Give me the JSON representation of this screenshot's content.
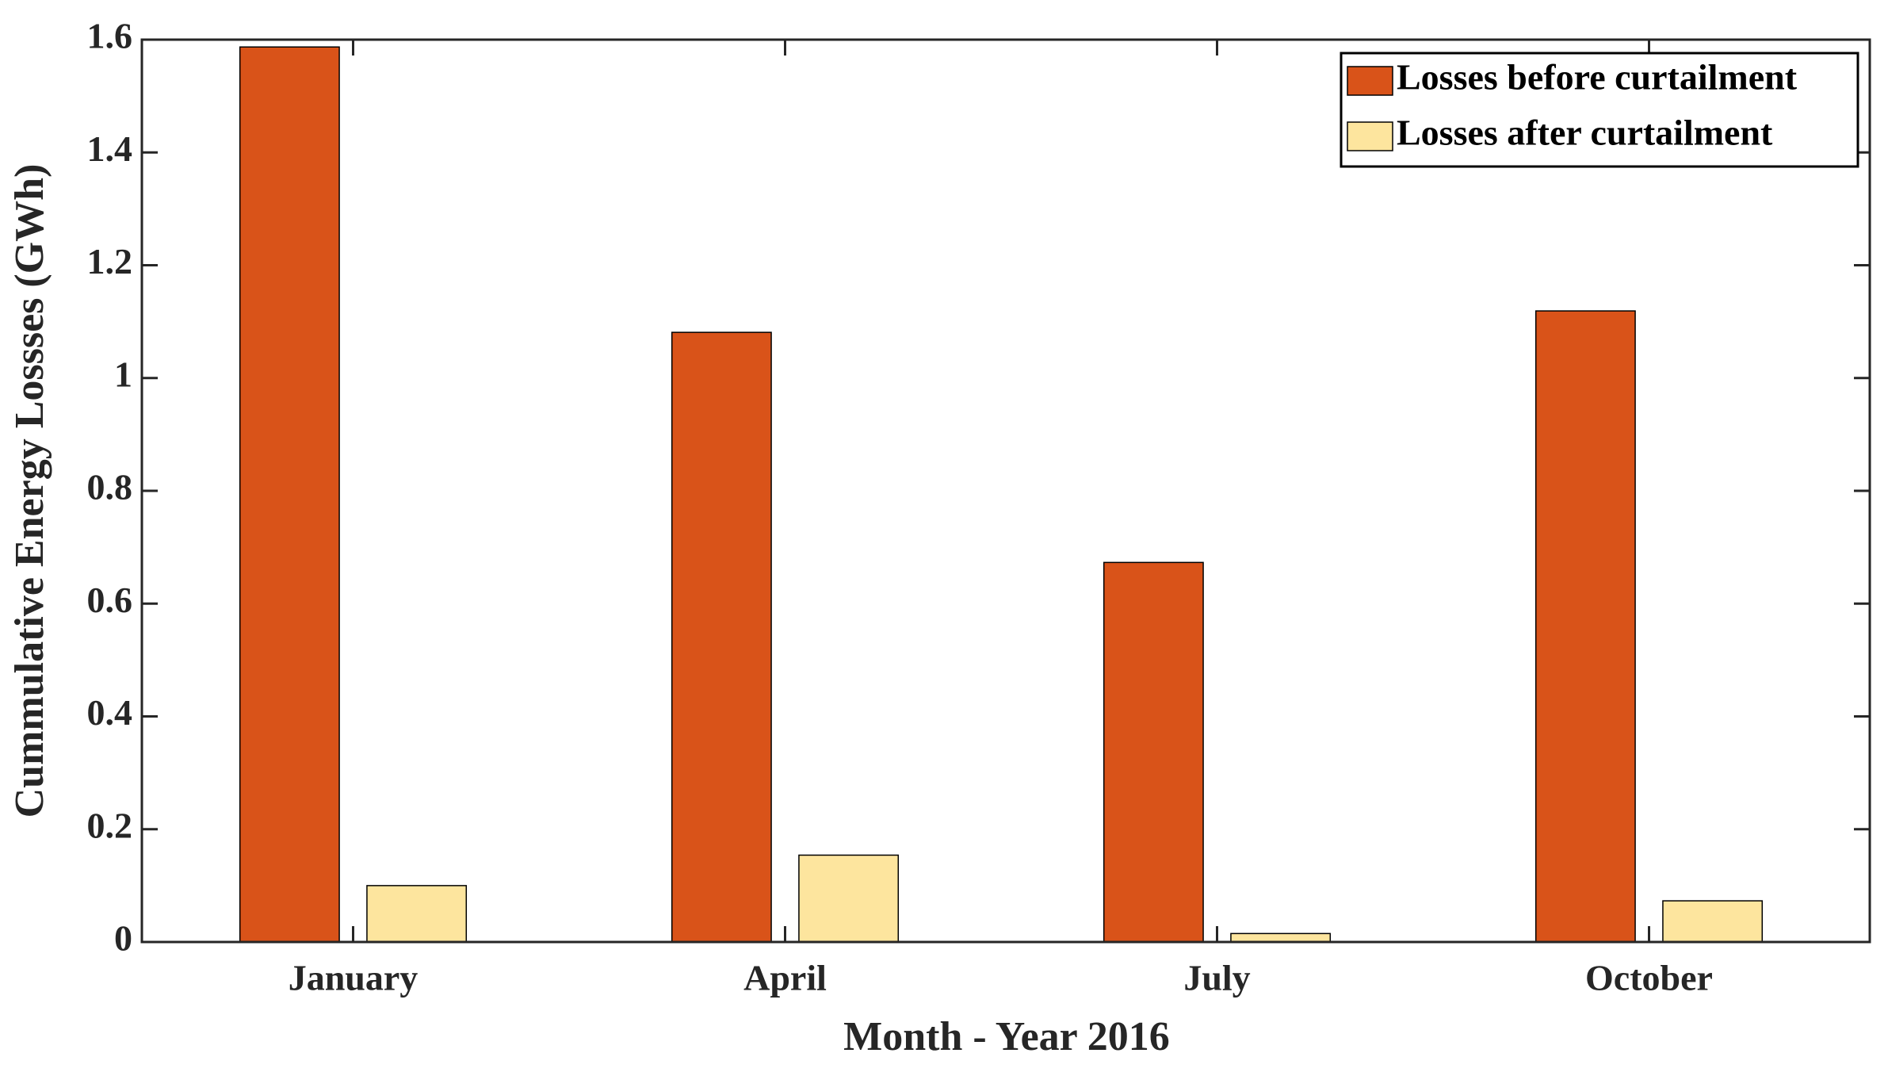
{
  "chart_data": {
    "type": "bar",
    "x_label": "Month - Year 2016",
    "y_label": "Cummulative Energy Lossses (GWh)",
    "categories": [
      "January",
      "April",
      "July",
      "October"
    ],
    "series": [
      {
        "name": "Losses before curtailment",
        "color": "#d95319",
        "values": [
          1.587,
          1.081,
          0.673,
          1.119
        ]
      },
      {
        "name": "Losses after curtailment",
        "color": "#fde59e",
        "values": [
          0.1,
          0.154,
          0.015,
          0.073
        ]
      }
    ],
    "ylim": [
      0,
      1.6
    ],
    "yticks": [
      0,
      0.2,
      0.4,
      0.6,
      0.8,
      1,
      1.2,
      1.4,
      1.6
    ],
    "legend": "northeast"
  }
}
